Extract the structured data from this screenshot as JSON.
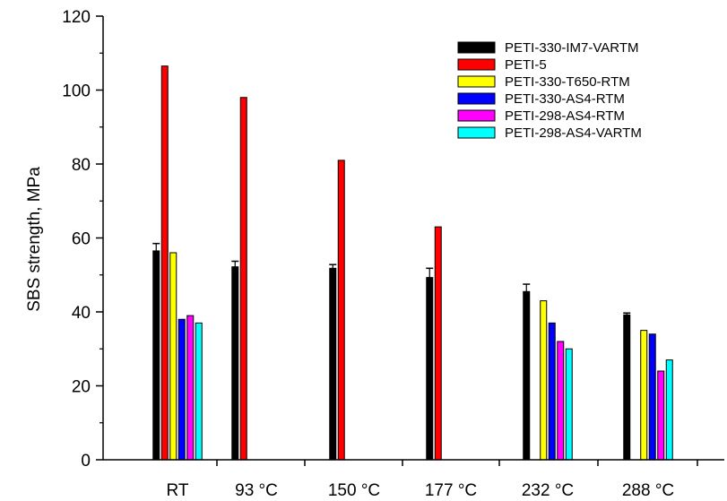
{
  "chart_data": {
    "type": "bar",
    "ylabel": "SBS strength, MPa",
    "xlabel": "",
    "ylim": [
      0,
      120
    ],
    "yticks": [
      0,
      20,
      40,
      60,
      80,
      100,
      120
    ],
    "categories": [
      "RT",
      "93 °C",
      "150 °C",
      "177 °C",
      "232 °C",
      "288 °C"
    ],
    "legend_position": "top-right",
    "grid": false,
    "series": [
      {
        "name": "PETI-330-IM7-VARTM",
        "color": "#000000",
        "values": [
          56.5,
          52.2,
          51.8,
          49.3,
          45.5,
          39.2
        ],
        "errors": [
          2.0,
          1.5,
          1.0,
          2.5,
          2.0,
          0.5
        ]
      },
      {
        "name": "PETI-5",
        "color": "#ff0000",
        "values": [
          106.5,
          98,
          81,
          63,
          null,
          null
        ]
      },
      {
        "name": "PETI-330-T650-RTM",
        "color": "#ffff00",
        "values": [
          56,
          null,
          null,
          null,
          43,
          35
        ]
      },
      {
        "name": "PETI-330-AS4-RTM",
        "color": "#0000ff",
        "values": [
          38,
          null,
          null,
          null,
          37,
          34
        ]
      },
      {
        "name": "PETI-298-AS4-RTM",
        "color": "#ff00ff",
        "values": [
          39,
          null,
          null,
          null,
          32,
          24
        ]
      },
      {
        "name": "PETI-298-AS4-VARTM",
        "color": "#00ffff",
        "values": [
          37,
          null,
          null,
          null,
          30,
          27
        ]
      }
    ]
  }
}
